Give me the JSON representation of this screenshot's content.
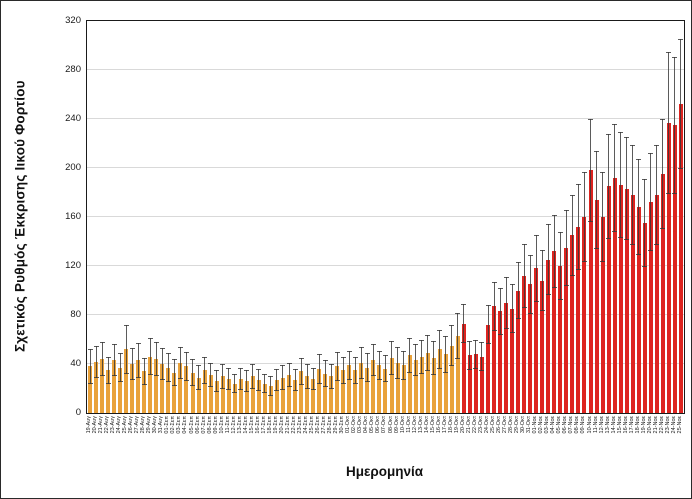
{
  "figure": {
    "y_axis_title": "Σχετικός Ρυθμός Έκκρισης Ιικού Φορτίου",
    "x_axis_title": "Ημερομηνία"
  },
  "colors": {
    "bar_orange": "#E9A23B",
    "bar_red": "#DD2420",
    "error_bar": "#373737",
    "gridline": "#D9D9D9",
    "axis": "#1A1A1A",
    "background": "#FFFFFF"
  },
  "chart_data": {
    "type": "bar",
    "title": "",
    "xlabel": "Ημερομηνία",
    "ylabel": "Σχετικός Ρυθμός Έκκρισης Ιικού Φορτίου",
    "ylim": [
      0,
      320
    ],
    "yticks": [
      0,
      40,
      80,
      120,
      160,
      200,
      240,
      280,
      320
    ],
    "grid": true,
    "legend_position": "none",
    "error_bars": "symmetric whiskers with caps, dark gray",
    "color_rule": "bars before red_start_index are orange, from red_start_index onward red",
    "red_start_index": 62,
    "categories": [
      "19-Αυγ",
      "20-Αυγ",
      "21-Αυγ",
      "22-Αυγ",
      "23-Αυγ",
      "24-Αυγ",
      "25-Αυγ",
      "26-Αυγ",
      "27-Αυγ",
      "28-Αυγ",
      "29-Αυγ",
      "30-Αυγ",
      "31-Αυγ",
      "01-Σεπ",
      "02-Σεπ",
      "03-Σεπ",
      "04-Σεπ",
      "05-Σεπ",
      "06-Σεπ",
      "07-Σεπ",
      "08-Σεπ",
      "09-Σεπ",
      "10-Σεπ",
      "11-Σεπ",
      "12-Σεπ",
      "13-Σεπ",
      "14-Σεπ",
      "15-Σεπ",
      "16-Σεπ",
      "17-Σεπ",
      "18-Σεπ",
      "19-Σεπ",
      "20-Σεπ",
      "21-Σεπ",
      "22-Σεπ",
      "23-Σεπ",
      "24-Σεπ",
      "25-Σεπ",
      "26-Σεπ",
      "27-Σεπ",
      "28-Σεπ",
      "29-Σεπ",
      "30-Σεπ",
      "01-Οκτ",
      "02-Οκτ",
      "03-Οκτ",
      "04-Οκτ",
      "05-Οκτ",
      "06-Οκτ",
      "07-Οκτ",
      "08-Οκτ",
      "09-Οκτ",
      "10-Οκτ",
      "11-Οκτ",
      "12-Οκτ",
      "13-Οκτ",
      "14-Οκτ",
      "15-Οκτ",
      "16-Οκτ",
      "17-Οκτ",
      "18-Οκτ",
      "19-Οκτ",
      "20-Οκτ",
      "21-Οκτ",
      "22-Οκτ",
      "23-Οκτ",
      "24-Οκτ",
      "25-Οκτ",
      "26-Οκτ",
      "27-Οκτ",
      "28-Οκτ",
      "29-Οκτ",
      "30-Οκτ",
      "31-Οκτ",
      "01-Νοε",
      "02-Νοε",
      "03-Νοε",
      "04-Νοε",
      "05-Νοε",
      "06-Νοε",
      "07-Νοε",
      "08-Νοε",
      "09-Νοε",
      "10-Νοε",
      "11-Νοε",
      "12-Νοε",
      "13-Νοε",
      "14-Νοε",
      "15-Νοε",
      "16-Νοε",
      "17-Νοε",
      "18-Νοε",
      "19-Νοε",
      "20-Νοε",
      "21-Νοε",
      "22-Νοε",
      "23-Νοε",
      "24-Νοε",
      "25-Νοε"
    ],
    "values": [
      38,
      42,
      44,
      35,
      43,
      37,
      52,
      40,
      43,
      34,
      46,
      44,
      40,
      37,
      33,
      41,
      38,
      33,
      29,
      35,
      31,
      26,
      30,
      28,
      24,
      28,
      26,
      30,
      27,
      24,
      22,
      27,
      29,
      31,
      27,
      34,
      30,
      28,
      36,
      32,
      30,
      38,
      35,
      39,
      35,
      41,
      37,
      43,
      39,
      36,
      45,
      41,
      39,
      47,
      43,
      46,
      49,
      45,
      52,
      48,
      55,
      63,
      73,
      47,
      48,
      46,
      72,
      87,
      83,
      90,
      85,
      100,
      112,
      105,
      118,
      108,
      125,
      132,
      120,
      135,
      145,
      152,
      160,
      198,
      174,
      160,
      185,
      192,
      186,
      183,
      178,
      168,
      155,
      172,
      178,
      195,
      237,
      235,
      252
    ],
    "errors": [
      14,
      13,
      14,
      11,
      13,
      12,
      20,
      13,
      14,
      11,
      15,
      14,
      13,
      12,
      11,
      13,
      12,
      11,
      10,
      11,
      10,
      9,
      10,
      9,
      8,
      9,
      9,
      10,
      9,
      8,
      8,
      9,
      10,
      10,
      9,
      11,
      10,
      9,
      12,
      11,
      10,
      12,
      11,
      12,
      11,
      13,
      12,
      13,
      12,
      11,
      14,
      13,
      12,
      14,
      13,
      14,
      15,
      14,
      16,
      15,
      17,
      19,
      16,
      12,
      12,
      12,
      16,
      20,
      19,
      21,
      20,
      23,
      26,
      24,
      27,
      25,
      29,
      30,
      28,
      31,
      33,
      35,
      37,
      42,
      40,
      37,
      43,
      44,
      43,
      42,
      41,
      39,
      36,
      40,
      41,
      45,
      58,
      56,
      53
    ]
  }
}
